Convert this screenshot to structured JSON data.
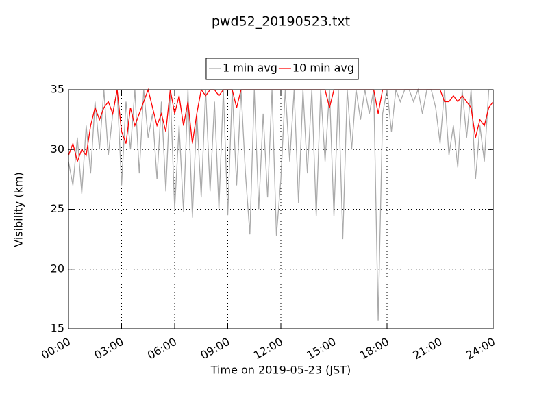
{
  "chart_data": {
    "type": "line",
    "title": "pwd52_20190523.txt",
    "xlabel": "Time on 2019-05-23 (JST)",
    "ylabel": "Visibility (km)",
    "x": [
      0,
      0.25,
      0.5,
      0.75,
      1,
      1.25,
      1.5,
      1.75,
      2,
      2.25,
      2.5,
      2.75,
      3,
      3.25,
      3.5,
      3.75,
      4,
      4.25,
      4.5,
      4.75,
      5,
      5.25,
      5.5,
      5.75,
      6,
      6.25,
      6.5,
      6.75,
      7,
      7.25,
      7.5,
      7.75,
      8,
      8.25,
      8.5,
      8.75,
      9,
      9.25,
      9.5,
      9.75,
      10,
      10.25,
      10.5,
      10.75,
      11,
      11.25,
      11.5,
      11.75,
      12,
      12.25,
      12.5,
      12.75,
      13,
      13.25,
      13.5,
      13.75,
      14,
      14.25,
      14.5,
      14.75,
      15,
      15.25,
      15.5,
      15.75,
      16,
      16.25,
      16.5,
      16.75,
      17,
      17.25,
      17.5,
      17.75,
      18,
      18.25,
      18.5,
      18.75,
      19,
      19.25,
      19.5,
      19.75,
      20,
      20.25,
      20.5,
      20.75,
      21,
      21.25,
      21.5,
      21.75,
      22,
      22.25,
      22.5,
      22.75,
      23,
      23.25,
      23.5,
      23.75,
      24
    ],
    "series": [
      {
        "name": "1 min avg",
        "color": "#aaaaaa",
        "values": [
          29,
          27,
          31,
          26.3,
          32,
          28,
          34,
          30,
          35,
          29.5,
          33,
          35,
          27,
          34,
          30,
          35,
          28,
          35,
          31,
          33,
          27.5,
          34,
          26.5,
          35,
          25,
          32,
          24.8,
          35,
          24.3,
          33,
          26,
          35,
          26.5,
          34,
          25,
          35,
          24.5,
          35,
          27,
          35,
          28,
          22.9,
          35,
          25,
          33,
          26,
          35,
          22.8,
          27.5,
          35,
          29,
          35,
          25.5,
          35,
          28,
          35,
          24.4,
          35,
          29,
          35,
          24.4,
          35,
          22.5,
          35,
          30,
          35,
          32.5,
          35,
          33,
          35,
          15.7,
          33,
          35,
          31.5,
          35,
          34,
          35,
          35,
          34,
          35,
          33,
          35,
          35,
          33.5,
          30.5,
          35,
          29.5,
          32,
          28.5,
          35,
          31,
          35,
          27.5,
          32,
          29,
          35,
          35
        ]
      },
      {
        "name": "10 min avg",
        "color": "#ff0000",
        "values": [
          29.5,
          30.5,
          29,
          30,
          29.5,
          32,
          33.5,
          32.5,
          33.5,
          34,
          33,
          35,
          31.5,
          30.5,
          33.5,
          32,
          33,
          34,
          35,
          33.5,
          32,
          33,
          31.5,
          35,
          33,
          34.5,
          32,
          34,
          30.5,
          33,
          35,
          34.5,
          35,
          35,
          34.5,
          35,
          35,
          35,
          33.5,
          35,
          35,
          35,
          35,
          35,
          35,
          35,
          35,
          35,
          35,
          35,
          35,
          35,
          35,
          35,
          35,
          35,
          35,
          35,
          35,
          33.5,
          35,
          35,
          35,
          35,
          35,
          35,
          35,
          35,
          35,
          35,
          33,
          35,
          35,
          35,
          35,
          35,
          35,
          35,
          35,
          35,
          35,
          35,
          35,
          35,
          35,
          34,
          34,
          34.5,
          34,
          34.5,
          34,
          33.5,
          31,
          32.5,
          32,
          33.5,
          34
        ]
      }
    ],
    "xlim": [
      0,
      24
    ],
    "xticks": [
      {
        "value": 0,
        "label": "00:00"
      },
      {
        "value": 3,
        "label": "03:00"
      },
      {
        "value": 6,
        "label": "06:00"
      },
      {
        "value": 9,
        "label": "09:00"
      },
      {
        "value": 12,
        "label": "12:00"
      },
      {
        "value": 15,
        "label": "15:00"
      },
      {
        "value": 18,
        "label": "18:00"
      },
      {
        "value": 21,
        "label": "21:00"
      },
      {
        "value": 24,
        "label": "24:00"
      }
    ],
    "ylim": [
      15,
      35
    ],
    "yticks": [
      15,
      20,
      25,
      30,
      35
    ],
    "grid": true,
    "legend": "top"
  }
}
